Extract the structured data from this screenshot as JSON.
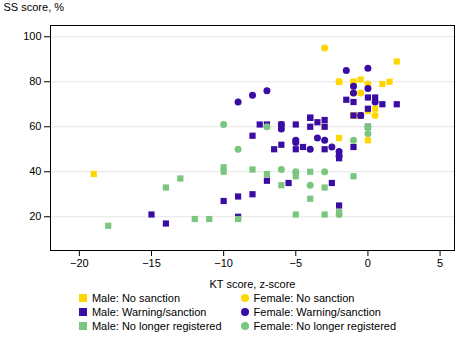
{
  "chart_data": {
    "type": "scatter",
    "xlabel": "KT score, z-score",
    "ylabel": "SS score, %",
    "xlim": [
      -22,
      6
    ],
    "ylim": [
      5,
      105
    ],
    "xticks": [
      -20,
      -15,
      -10,
      -5,
      0,
      5
    ],
    "yticks": [
      20,
      40,
      60,
      80,
      100
    ],
    "grid": "y",
    "legend": "bottom",
    "series": [
      {
        "name": "Male: No sanction",
        "color": "#FFD700",
        "marker": "square",
        "x": [
          -19,
          -1,
          -0.5,
          0,
          0.5,
          1,
          1.5,
          2,
          -2,
          -1,
          0,
          -0.5,
          -3,
          -1,
          -2
        ],
        "values": [
          39,
          80,
          81,
          67,
          68,
          79,
          80,
          89,
          80,
          65,
          54,
          65,
          60,
          65,
          55
        ]
      },
      {
        "name": "Male: Warning/sanction",
        "color": "#3A0CA3",
        "marker": "square",
        "x": [
          -15,
          -14,
          -10,
          -9,
          -9,
          -8,
          -8,
          -7.5,
          -7,
          -7,
          -6.5,
          -6,
          -6,
          -5.5,
          -5,
          -5,
          -4.5,
          -4,
          -4,
          -3.5,
          -3,
          -3,
          -2.5,
          -2,
          -2,
          -1.5,
          -1,
          -1,
          -0.5,
          0,
          0,
          0.5,
          1,
          2,
          -4,
          -3,
          -2,
          -1,
          0
        ],
        "values": [
          21,
          17,
          27,
          20,
          29,
          56,
          30,
          61,
          36,
          61,
          50,
          61,
          52,
          35,
          61,
          50,
          51,
          60,
          64,
          62,
          50,
          60,
          35,
          25,
          47,
          72,
          71,
          65,
          65,
          68,
          73,
          73,
          70,
          70,
          64,
          63,
          46,
          51,
          60
        ]
      },
      {
        "name": "Male: No longer registered",
        "color": "#7BC67E",
        "marker": "square",
        "x": [
          -18,
          -14,
          -13,
          -12,
          -11,
          -10,
          -10,
          -9,
          -8,
          -7,
          -6,
          -5,
          -5,
          -4,
          -4,
          -3,
          -3,
          -2,
          -1
        ],
        "values": [
          16,
          33,
          37,
          19,
          19,
          40,
          42,
          19,
          41,
          39,
          34,
          21,
          38,
          28,
          40,
          33,
          21,
          22,
          38
        ]
      },
      {
        "name": "Female: No sanction",
        "color": "#FFD700",
        "marker": "circle",
        "x": [
          -3,
          -2,
          -1,
          -0.5,
          0,
          -1,
          0.5
        ],
        "values": [
          95,
          80,
          80,
          75,
          79,
          75,
          65
        ]
      },
      {
        "name": "Female: Warning/sanction",
        "color": "#3A0CA3",
        "marker": "circle",
        "x": [
          -9,
          -8,
          -7,
          -6,
          -6,
          -5,
          -5,
          -4,
          -3.5,
          -3,
          -2.5,
          -2,
          -2,
          -1.5,
          -1,
          -1,
          0,
          0,
          0.5,
          -0.5
        ],
        "values": [
          71,
          74,
          76,
          59,
          61,
          54,
          53,
          50,
          55,
          54,
          51,
          49,
          47,
          85,
          78,
          75,
          77,
          86,
          71,
          65
        ]
      },
      {
        "name": "Female: No longer registered",
        "color": "#7BC67E",
        "marker": "circle",
        "x": [
          -10,
          -9,
          -7,
          -6,
          -5,
          -4,
          -3,
          -2,
          -1,
          0,
          0
        ],
        "values": [
          61,
          50,
          60,
          41,
          40,
          34,
          40,
          21,
          54,
          60,
          57
        ]
      }
    ]
  }
}
